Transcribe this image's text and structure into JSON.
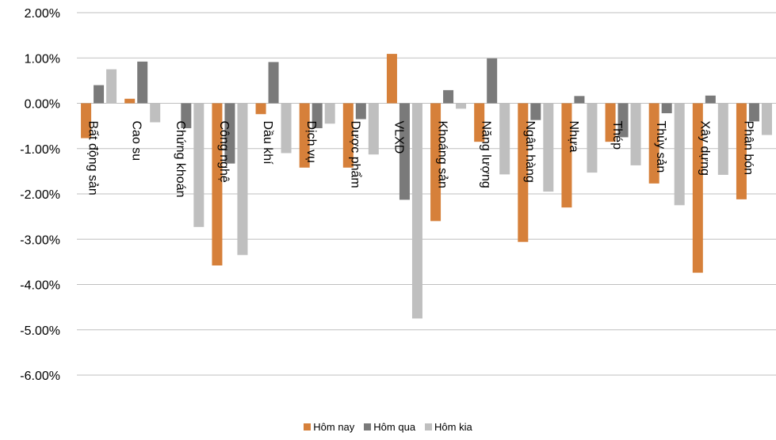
{
  "chart_data": {
    "type": "bar",
    "categories": [
      "Bất động sản",
      "Cao su",
      "Chứng khoán",
      "Công nghệ",
      "Dầu khí",
      "Dịch vụ",
      "Dược phẩm",
      "VLXD",
      "Khoáng sản",
      "Năng lượng",
      "Ngân hàng",
      "Nhựa",
      "Thép",
      "Thủy sản",
      "Xây dựng",
      "Phân bón"
    ],
    "series": [
      {
        "name": "Hôm nay",
        "color": "#d6803a",
        "values": [
          -0.77,
          0.1,
          0.0,
          -3.58,
          -0.24,
          -1.42,
          -1.42,
          1.09,
          -2.6,
          -0.85,
          -3.06,
          -2.3,
          -0.85,
          -1.77,
          -3.74,
          -2.12
        ]
      },
      {
        "name": "Hôm qua",
        "color": "#7a7a7a",
        "values": [
          0.4,
          0.92,
          -0.55,
          -1.33,
          0.91,
          -0.55,
          -0.35,
          -2.13,
          0.29,
          0.99,
          -0.37,
          0.16,
          -0.75,
          -0.22,
          0.17,
          -0.4
        ]
      },
      {
        "name": "Hôm kia",
        "color": "#bfbfbf",
        "values": [
          0.75,
          -0.42,
          -2.73,
          -3.35,
          -1.1,
          -0.45,
          -1.13,
          -4.75,
          -0.12,
          -1.57,
          -1.95,
          -1.53,
          -1.37,
          -2.25,
          -1.58,
          -0.7
        ]
      }
    ],
    "yticks": [
      "2.00%",
      "1.00%",
      "0.00%",
      "-1.00%",
      "-2.00%",
      "-3.00%",
      "-4.00%",
      "-5.00%",
      "-6.00%"
    ],
    "ylim": [
      -6,
      2
    ],
    "grid": true,
    "legend_position": "bottom"
  }
}
